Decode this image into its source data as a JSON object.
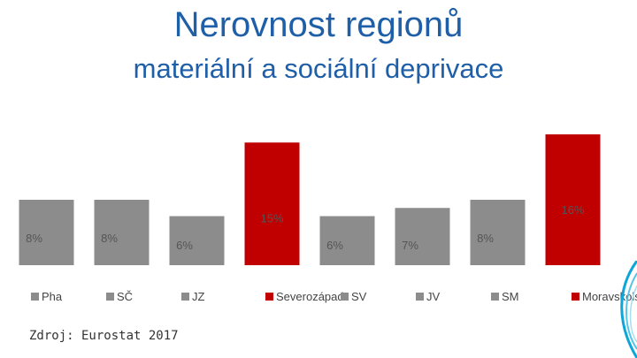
{
  "title": "Nerovnost regionů",
  "subtitle": "materiální a sociální deprivace",
  "source": "Zdroj: Eurostat 2017",
  "colors": {
    "grey": "#8c8c8c",
    "red": "#c00000",
    "title": "#1f5fa8",
    "accent": "#0ea5d8"
  },
  "chart_data": {
    "type": "bar",
    "categories": [
      "Pha",
      "SČ",
      "JZ",
      "Severozápad",
      "SV",
      "JV",
      "SM",
      "Moravskolsezsko"
    ],
    "values": [
      8,
      8,
      6,
      15,
      6,
      7,
      8,
      16
    ],
    "data_labels": [
      "8%",
      "8%",
      "6%",
      "15%",
      "6%",
      "7%",
      "8%",
      "16%"
    ],
    "series_colors": [
      "grey",
      "grey",
      "grey",
      "red",
      "grey",
      "grey",
      "grey",
      "red"
    ],
    "ylim": [
      0,
      16
    ],
    "xlabel": "",
    "ylabel": "",
    "legend": "bottom"
  }
}
